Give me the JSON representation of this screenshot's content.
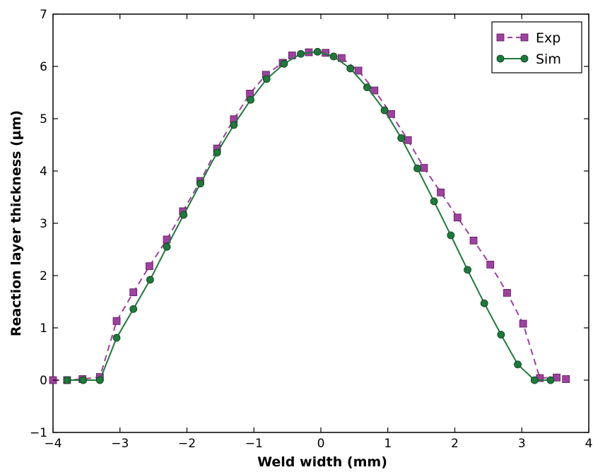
{
  "chart_data": {
    "type": "line",
    "xlabel": "Weld width (mm)",
    "ylabel": "Reaction layer thickness (µm)",
    "xlim": [
      -4,
      4
    ],
    "ylim": [
      -1,
      7
    ],
    "xticks": [
      "−4",
      "−3",
      "−2",
      "−1",
      "0",
      "1",
      "2",
      "3",
      "4"
    ],
    "yticks": [
      "−1",
      "0",
      "1",
      "2",
      "3",
      "4",
      "5",
      "6",
      "7"
    ],
    "grid": false,
    "legend_position": "top-right",
    "series": [
      {
        "name": "Exp",
        "color": "#a040a0",
        "line_style": "dashed",
        "marker": "square",
        "x": [
          -4.0,
          -3.79,
          -3.56,
          -3.3,
          -3.05,
          -2.8,
          -2.56,
          -2.3,
          -2.06,
          -1.8,
          -1.55,
          -1.3,
          -1.06,
          -0.82,
          -0.57,
          -0.43,
          -0.18,
          0.07,
          0.31,
          0.56,
          0.8,
          1.05,
          1.3,
          1.54,
          1.79,
          2.04,
          2.28,
          2.53,
          2.78,
          3.02,
          3.27,
          3.52,
          3.66
        ],
        "y": [
          0.0,
          0.0,
          0.02,
          0.06,
          1.13,
          1.68,
          2.18,
          2.69,
          3.23,
          3.81,
          4.43,
          4.99,
          5.48,
          5.84,
          6.07,
          6.21,
          6.27,
          6.26,
          6.16,
          5.92,
          5.54,
          5.09,
          4.59,
          4.06,
          3.59,
          3.11,
          2.67,
          2.21,
          1.67,
          1.08,
          0.04,
          0.05,
          0.02
        ]
      },
      {
        "name": "Sim",
        "color": "#1d7a3a",
        "line_style": "solid",
        "marker": "circle",
        "x": [
          -3.79,
          -3.55,
          -3.3,
          -3.05,
          -2.8,
          -2.55,
          -2.3,
          -2.05,
          -1.8,
          -1.55,
          -1.3,
          -1.05,
          -0.81,
          -0.55,
          -0.3,
          -0.05,
          0.19,
          0.44,
          0.69,
          0.95,
          1.2,
          1.44,
          1.69,
          1.94,
          2.19,
          2.44,
          2.69,
          2.94,
          3.19,
          3.43
        ],
        "y": [
          0.0,
          0.0,
          0.0,
          0.81,
          1.36,
          1.92,
          2.55,
          3.16,
          3.76,
          4.35,
          4.88,
          5.36,
          5.76,
          6.05,
          6.24,
          6.28,
          6.19,
          5.96,
          5.6,
          5.16,
          4.63,
          4.05,
          3.42,
          2.77,
          2.11,
          1.47,
          0.87,
          0.3,
          0.0,
          0.0
        ]
      }
    ]
  }
}
